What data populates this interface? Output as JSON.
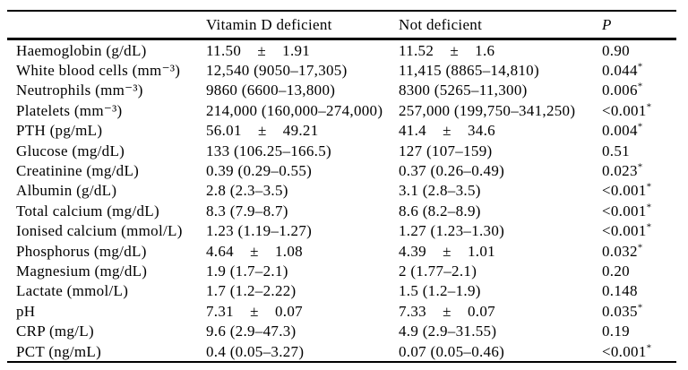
{
  "table": {
    "columns": [
      "",
      "Vitamin D deficient",
      "Not deficient",
      "P"
    ],
    "rows": [
      {
        "label": "Haemoglobin (g/dL)",
        "deficient": "11.50    ±    1.91",
        "not_deficient": "11.52    ±    1.6",
        "p": "0.90",
        "star": false
      },
      {
        "label": "White blood cells (mm⁻³)",
        "deficient": "12,540 (9050–17,305)",
        "not_deficient": "11,415 (8865–14,810)",
        "p": "0.044",
        "star": true
      },
      {
        "label": "Neutrophils (mm⁻³)",
        "deficient": "9860 (6600–13,800)",
        "not_deficient": "8300 (5265–11,300)",
        "p": "0.006",
        "star": true
      },
      {
        "label": "Platelets (mm⁻³)",
        "deficient": "214,000 (160,000–274,000)",
        "not_deficient": "257,000 (199,750–341,250)",
        "p": "<0.001",
        "star": true
      },
      {
        "label": "PTH (pg/mL)",
        "deficient": "56.01    ±    49.21",
        "not_deficient": "41.4    ±    34.6",
        "p": "0.004",
        "star": true
      },
      {
        "label": "Glucose (mg/dL)",
        "deficient": "133 (106.25–166.5)",
        "not_deficient": "127 (107–159)",
        "p": "0.51",
        "star": false
      },
      {
        "label": "Creatinine (mg/dL)",
        "deficient": "0.39 (0.29–0.55)",
        "not_deficient": "0.37 (0.26–0.49)",
        "p": "0.023",
        "star": true
      },
      {
        "label": "Albumin (g/dL)",
        "deficient": "2.8 (2.3–3.5)",
        "not_deficient": "3.1 (2.8–3.5)",
        "p": "<0.001",
        "star": true
      },
      {
        "label": "Total calcium (mg/dL)",
        "deficient": "8.3 (7.9–8.7)",
        "not_deficient": "8.6 (8.2–8.9)",
        "p": "<0.001",
        "star": true
      },
      {
        "label": "Ionised calcium (mmol/L)",
        "deficient": "1.23 (1.19–1.27)",
        "not_deficient": "1.27 (1.23–1.30)",
        "p": "<0.001",
        "star": true
      },
      {
        "label": "Phosphorus (mg/dL)",
        "deficient": "4.64    ±    1.08",
        "not_deficient": "4.39    ±    1.01",
        "p": "0.032",
        "star": true
      },
      {
        "label": "Magnesium (mg/dL)",
        "deficient": "1.9 (1.7–2.1)",
        "not_deficient": "2 (1.77–2.1)",
        "p": "0.20",
        "star": false
      },
      {
        "label": "Lactate (mmol/L)",
        "deficient": "1.7 (1.2–2.22)",
        "not_deficient": "1.5 (1.2–1.9)",
        "p": "0.148",
        "star": false
      },
      {
        "label": "pH",
        "deficient": "7.31    ±    0.07",
        "not_deficient": "7.33    ±    0.07",
        "p": "0.035",
        "star": true
      },
      {
        "label": "CRP (mg/L)",
        "deficient": "9.6 (2.9–47.3)",
        "not_deficient": "4.9 (2.9–31.55)",
        "p": "0.19",
        "star": false
      },
      {
        "label": "PCT (ng/mL)",
        "deficient": "0.4 (0.05–3.27)",
        "not_deficient": "0.07 (0.05–0.46)",
        "p": "<0.001",
        "star": true
      }
    ]
  }
}
